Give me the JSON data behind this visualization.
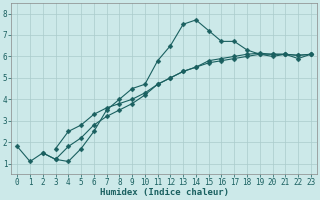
{
  "xlabel": "Humidex (Indice chaleur)",
  "bg_color": "#cce9e9",
  "grid_color": "#aacccc",
  "line_color": "#1a6060",
  "xlim": [
    -0.5,
    23.5
  ],
  "ylim": [
    0.5,
    8.5
  ],
  "xticks": [
    0,
    1,
    2,
    3,
    4,
    5,
    6,
    7,
    8,
    9,
    10,
    11,
    12,
    13,
    14,
    15,
    16,
    17,
    18,
    19,
    20,
    21,
    22,
    23
  ],
  "yticks": [
    1,
    2,
    3,
    4,
    5,
    6,
    7,
    8
  ],
  "line1_x": [
    0,
    1,
    2,
    3,
    4,
    5,
    6,
    7,
    8,
    9,
    10,
    11,
    12,
    13,
    14,
    15,
    16,
    17,
    18,
    19,
    20,
    21,
    22,
    23
  ],
  "line1_y": [
    1.8,
    1.1,
    1.5,
    1.2,
    1.1,
    1.7,
    2.5,
    3.5,
    4.0,
    4.5,
    4.7,
    5.8,
    6.5,
    7.5,
    7.7,
    7.2,
    6.7,
    6.7,
    6.3,
    6.1,
    6.0,
    6.1,
    5.9,
    6.1
  ],
  "line2_x": [
    2,
    3,
    4,
    5,
    6,
    7,
    8,
    9,
    10,
    11,
    12,
    13,
    14,
    15,
    16,
    17,
    18,
    19,
    20,
    21,
    22,
    23
  ],
  "line2_y": [
    1.5,
    1.2,
    1.8,
    2.2,
    2.8,
    3.2,
    3.5,
    3.8,
    4.2,
    4.7,
    5.0,
    5.3,
    5.5,
    5.8,
    5.9,
    6.0,
    6.1,
    6.15,
    6.1,
    6.1,
    6.05,
    6.1
  ],
  "line3_x": [
    3,
    4,
    5,
    6,
    7,
    8,
    9,
    10,
    11,
    12,
    13,
    14,
    15,
    16,
    17,
    18,
    19,
    20,
    21,
    22,
    23
  ],
  "line3_y": [
    1.7,
    2.5,
    2.8,
    3.3,
    3.6,
    3.8,
    4.0,
    4.3,
    4.7,
    5.0,
    5.3,
    5.5,
    5.7,
    5.8,
    5.9,
    6.0,
    6.1,
    6.1,
    6.1,
    6.05,
    6.1
  ],
  "tick_fontsize": 5.5,
  "xlabel_fontsize": 6.5,
  "marker_size": 2.5,
  "line_width": 0.8
}
